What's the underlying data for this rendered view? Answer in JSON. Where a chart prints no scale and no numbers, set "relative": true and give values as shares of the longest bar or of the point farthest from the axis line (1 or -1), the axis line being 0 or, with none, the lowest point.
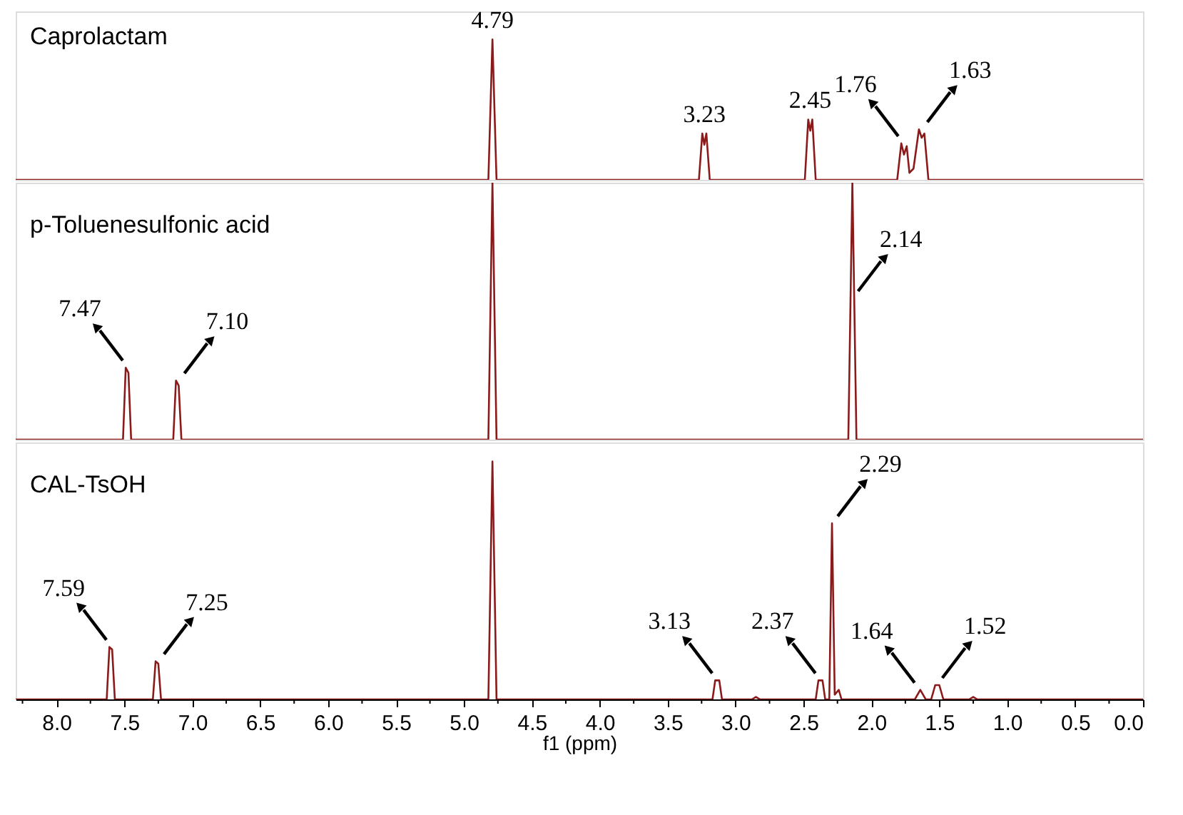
{
  "chart_data": [
    {
      "type": "line",
      "title": "Caprolactam",
      "relative": true,
      "xlim": [
        8.3,
        0.0
      ],
      "tick_labels": false,
      "series": [
        {
          "color": "#8b1a1a",
          "x": [
            8.3,
            4.82,
            4.79,
            4.76,
            3.27,
            3.245,
            3.23,
            3.215,
            3.19,
            2.49,
            2.465,
            2.45,
            2.435,
            2.41,
            1.81,
            1.78,
            1.76,
            1.74,
            1.72,
            1.69,
            1.65,
            1.63,
            1.61,
            1.58,
            0.0
          ],
          "values": [
            0,
            0,
            1,
            0,
            0,
            0.33,
            0.25,
            0.33,
            0,
            0,
            0.43,
            0.35,
            0.43,
            0,
            0,
            0.26,
            0.18,
            0.24,
            0.05,
            0.08,
            0.36,
            0.3,
            0.33,
            0,
            0
          ]
        }
      ],
      "annotations": [
        {
          "text": "4.79",
          "x": 4.79,
          "y": 1
        },
        {
          "text": "3.23",
          "x": 3.23,
          "y": 0.33
        },
        {
          "text": "2.45",
          "x": 2.45,
          "y": 0.43
        },
        {
          "text": "1.76",
          "x": 1.76,
          "y": 0.26
        },
        {
          "text": "1.63",
          "x": 1.63,
          "y": 0.36
        }
      ]
    },
    {
      "type": "line",
      "title": "p-Toluenesulfonic acid",
      "relative": true,
      "xlim": [
        8.3,
        0.0
      ],
      "tick_labels": false,
      "series": [
        {
          "color": "#8b1a1a",
          "x": [
            8.3,
            7.51,
            7.49,
            7.47,
            7.45,
            7.14,
            7.12,
            7.1,
            7.08,
            4.82,
            4.79,
            4.76,
            2.17,
            2.14,
            2.11,
            0.0
          ],
          "values": [
            0,
            0,
            0.28,
            0.26,
            0,
            0,
            0.23,
            0.21,
            0,
            0,
            1,
            0,
            0,
            1,
            0,
            0
          ]
        }
      ],
      "annotations": [
        {
          "text": "7.47",
          "x": 7.47,
          "y": 0.28
        },
        {
          "text": "7.10",
          "x": 7.1,
          "y": 0.23
        },
        {
          "text": "2.14",
          "x": 2.14,
          "y": 0.55
        }
      ]
    },
    {
      "type": "line",
      "title": "CAL-TsOH",
      "relative": true,
      "xlim": [
        8.3,
        0.0
      ],
      "xlabel": "f1 (ppm)",
      "tick_labels": "x",
      "xticks": [
        {
          "value": 8,
          "label": "8.0"
        },
        7.5,
        {
          "value": 7,
          "label": "7.0"
        },
        6.5,
        {
          "value": 6,
          "label": "6.0"
        },
        5.5,
        {
          "value": 5,
          "label": "5.0"
        },
        4.5,
        {
          "value": 4,
          "label": "4.0"
        },
        3.5,
        {
          "value": 3,
          "label": "3.0"
        },
        2.5,
        {
          "value": 2,
          "label": "2.0"
        },
        1.5,
        {
          "value": 1,
          "label": "1.0"
        },
        0.5,
        {
          "value": 0,
          "label": "0.0"
        },
        {
          "value": 8.25,
          "label": null
        },
        {
          "value": 7.75,
          "label": null
        },
        {
          "value": 7.25,
          "label": null
        },
        {
          "value": 6.75,
          "label": null
        },
        {
          "value": 6.25,
          "label": null
        },
        {
          "value": 5.75,
          "label": null
        },
        {
          "value": 5.25,
          "label": null
        },
        {
          "value": 4.75,
          "label": null
        },
        {
          "value": 4.25,
          "label": null
        },
        {
          "value": 3.75,
          "label": null
        },
        {
          "value": 3.25,
          "label": null
        },
        {
          "value": 2.75,
          "label": null
        },
        {
          "value": 2.25,
          "label": null
        },
        {
          "value": 1.75,
          "label": null
        },
        {
          "value": 1.25,
          "label": null
        },
        {
          "value": 0.75,
          "label": null
        },
        {
          "value": 0.25,
          "label": null
        }
      ],
      "series": [
        {
          "color": "#8b1a1a",
          "x": [
            8.3,
            7.63,
            7.61,
            7.59,
            7.57,
            7.29,
            7.27,
            7.25,
            7.23,
            4.82,
            4.79,
            4.76,
            3.17,
            3.15,
            3.12,
            3.1,
            2.88,
            2.85,
            2.82,
            2.41,
            2.39,
            2.36,
            2.34,
            2.31,
            2.29,
            2.27,
            2.24,
            2.22,
            1.68,
            1.64,
            1.6,
            1.56,
            1.53,
            1.5,
            1.47,
            1.28,
            1.25,
            1.22,
            0.0
          ],
          "values": [
            0,
            0,
            0.22,
            0.21,
            0,
            0,
            0.16,
            0.15,
            0,
            0,
            1,
            0,
            0,
            0.08,
            0.08,
            0,
            0,
            0.01,
            0,
            0,
            0.08,
            0.08,
            0,
            0,
            0.74,
            0.02,
            0.04,
            0,
            0,
            0.04,
            0,
            0,
            0.06,
            0.06,
            0,
            0,
            0.01,
            0,
            0
          ]
        }
      ],
      "annotations": [
        {
          "text": "7.59",
          "x": 7.59,
          "y": 0.22
        },
        {
          "text": "7.25",
          "x": 7.25,
          "y": 0.16
        },
        {
          "text": "3.13",
          "x": 3.13,
          "y": 0.08
        },
        {
          "text": "2.37",
          "x": 2.37,
          "y": 0.08
        },
        {
          "text": "2.29",
          "x": 2.29,
          "y": 0.74
        },
        {
          "text": "1.64",
          "x": 1.64,
          "y": 0.04
        },
        {
          "text": "1.52",
          "x": 1.52,
          "y": 0.06
        }
      ]
    }
  ]
}
